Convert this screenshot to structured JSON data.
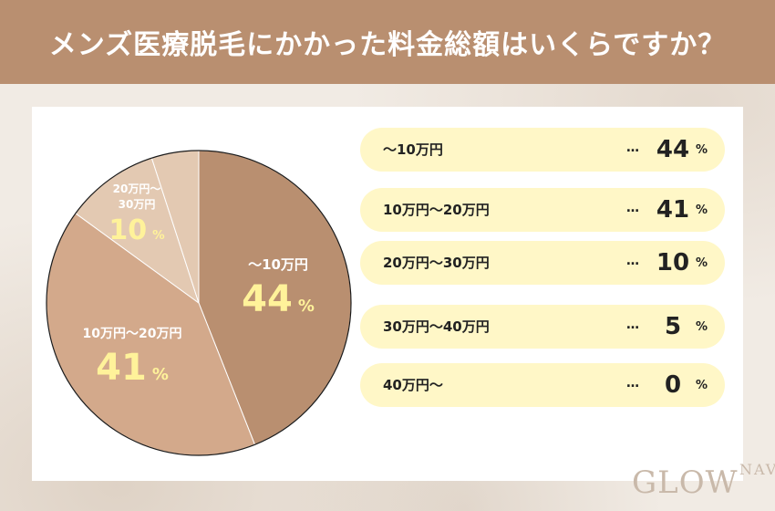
{
  "header": {
    "title": "メンズ医療脱毛にかかった料金総額はいくらですか？"
  },
  "colors": {
    "header_bg": "#b98f70",
    "slice_1": "#b98f70",
    "slice_2": "#d3a98b",
    "slice_3": "#e3c9b2",
    "slice_4": "#e3c9b2",
    "row_bg": "#fff7c7",
    "pie_pct": "#fff29a"
  },
  "chart_data": {
    "type": "pie",
    "unit": "%",
    "slices": [
      {
        "label": "〜10万円",
        "value": 44
      },
      {
        "label": "10万円〜20万円",
        "value": 41
      },
      {
        "label": "20万円〜30万円",
        "value": 10
      },
      {
        "label": "30万円〜40万円",
        "value": 5
      },
      {
        "label": "40万円〜",
        "value": 0
      }
    ]
  },
  "pie_labels": [
    {
      "name_lines": [
        "〜10万円"
      ],
      "pct": "44",
      "unit": "%"
    },
    {
      "name_lines": [
        "10万円〜20万円"
      ],
      "pct": "41",
      "unit": "%"
    },
    {
      "name_lines": [
        "20万円〜",
        "30万円"
      ],
      "pct": "10",
      "unit": "%"
    }
  ],
  "legend": {
    "dots": "…",
    "unit": "%",
    "rows": [
      {
        "label": "〜10万円",
        "value": "44"
      },
      {
        "label": "10万円〜20万円",
        "value": "41"
      },
      {
        "label": "20万円〜30万円",
        "value": "10"
      },
      {
        "label": "30万円〜40万円",
        "value": "5"
      },
      {
        "label": "40万円〜",
        "value": "0"
      }
    ]
  },
  "logo": {
    "main": "GLOW",
    "sub": "NAVI"
  }
}
